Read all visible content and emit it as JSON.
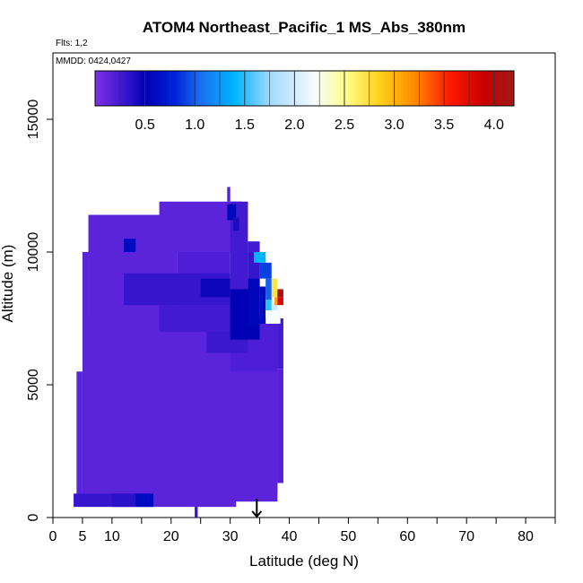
{
  "chart_data": {
    "type": "heatmap",
    "title": "ATOM4 Northeast_Pacific_1 MS_Abs_380nm",
    "flights_label": "Flts: 1,2",
    "dates_label": "MMDD: 0424,0427",
    "xlabel": "Latitude (deg N)",
    "ylabel": "Altitude (m)",
    "xlim": [
      0,
      85
    ],
    "ylim": [
      0,
      17500
    ],
    "x_ticks": [
      0,
      5,
      10,
      20,
      30,
      40,
      50,
      60,
      70,
      80
    ],
    "x_minor_ticks": [
      15,
      25,
      35,
      45,
      55,
      65,
      75,
      85
    ],
    "y_ticks": [
      0,
      5000,
      10000,
      15000
    ],
    "colorbar": {
      "range": [
        0,
        4.2
      ],
      "ticks": [
        0.5,
        1.0,
        1.5,
        2.0,
        2.5,
        3.0,
        3.5,
        4.0
      ],
      "tick_labels": [
        "0.5",
        "1.0",
        "1.5",
        "2.0",
        "2.5",
        "3.0",
        "3.5",
        "4.0"
      ],
      "stops": [
        {
          "v": 0.0,
          "c": "#7f2fe8"
        },
        {
          "v": 0.35,
          "c": "#2a12c8"
        },
        {
          "v": 0.5,
          "c": "#0000b4"
        },
        {
          "v": 0.8,
          "c": "#0022d8"
        },
        {
          "v": 1.05,
          "c": "#1a6ef0"
        },
        {
          "v": 1.4,
          "c": "#00b4ff"
        },
        {
          "v": 1.75,
          "c": "#9fd9ff"
        },
        {
          "v": 2.2,
          "c": "#f6fbff"
        },
        {
          "v": 2.5,
          "c": "#ffff90"
        },
        {
          "v": 2.85,
          "c": "#ffd21a"
        },
        {
          "v": 3.2,
          "c": "#ff8c00"
        },
        {
          "v": 3.55,
          "c": "#ff1a00"
        },
        {
          "v": 3.9,
          "c": "#c80000"
        },
        {
          "v": 4.2,
          "c": "#a01a1a"
        }
      ]
    },
    "cells": [
      {
        "lat0": 5.0,
        "lat1": 38.0,
        "alt0": 600,
        "alt1": 7500,
        "v": 0.15
      },
      {
        "lat0": 4.0,
        "lat1": 5.0,
        "alt0": 600,
        "alt1": 5500,
        "v": 0.15
      },
      {
        "lat0": 5.0,
        "lat1": 6.0,
        "alt0": 7500,
        "alt1": 10000,
        "v": 0.15
      },
      {
        "lat0": 6.0,
        "lat1": 21.0,
        "alt0": 7500,
        "alt1": 11400,
        "v": 0.15
      },
      {
        "lat0": 18.0,
        "lat1": 32.0,
        "alt0": 10000,
        "alt1": 11900,
        "v": 0.15
      },
      {
        "lat0": 21.0,
        "lat1": 30.0,
        "alt0": 7500,
        "alt1": 10000,
        "v": 0.2
      },
      {
        "lat0": 30.0,
        "lat1": 33.0,
        "alt0": 7500,
        "alt1": 11900,
        "v": 0.25
      },
      {
        "lat0": 29.5,
        "lat1": 30.0,
        "alt0": 11900,
        "alt1": 12450,
        "v": 0.2
      },
      {
        "lat0": 33.0,
        "lat1": 35.0,
        "alt0": 8000,
        "alt1": 10000,
        "v": 0.3
      },
      {
        "lat0": 30.0,
        "lat1": 38.0,
        "alt0": 5500,
        "alt1": 7500,
        "v": 0.2
      },
      {
        "lat0": 38.0,
        "lat1": 39.0,
        "alt0": 5600,
        "alt1": 7500,
        "v": 0.25
      },
      {
        "lat0": 38.0,
        "lat1": 39.0,
        "alt0": 1300,
        "alt1": 5600,
        "v": 0.18
      },
      {
        "lat0": 35.0,
        "lat1": 38.0,
        "alt0": 900,
        "alt1": 5500,
        "v": 0.15
      },
      {
        "lat0": 12.0,
        "lat1": 30.0,
        "alt0": 8000,
        "alt1": 9200,
        "v": 0.3
      },
      {
        "lat0": 18.0,
        "lat1": 33.0,
        "alt0": 7000,
        "alt1": 8000,
        "v": 0.25
      },
      {
        "lat0": 26.0,
        "lat1": 33.0,
        "alt0": 6200,
        "alt1": 7000,
        "v": 0.28
      },
      {
        "lat0": 25.0,
        "lat1": 30.0,
        "alt0": 8300,
        "alt1": 9000,
        "v": 0.45
      },
      {
        "lat0": 30.0,
        "lat1": 35.0,
        "alt0": 6700,
        "alt1": 8600,
        "v": 0.5
      },
      {
        "lat0": 33.0,
        "lat1": 35.0,
        "alt0": 7200,
        "alt1": 9000,
        "v": 0.55
      },
      {
        "lat0": 35.0,
        "lat1": 36.0,
        "alt0": 7300,
        "alt1": 8700,
        "v": 0.6
      },
      {
        "lat0": 35.0,
        "lat1": 37.0,
        "alt0": 9000,
        "alt1": 9600,
        "v": 0.9
      },
      {
        "lat0": 36.0,
        "lat1": 37.0,
        "alt0": 8200,
        "alt1": 9000,
        "v": 1.0
      },
      {
        "lat0": 36.0,
        "lat1": 37.0,
        "alt0": 7800,
        "alt1": 8200,
        "v": 1.5
      },
      {
        "lat0": 37.0,
        "lat1": 38.0,
        "alt0": 7800,
        "alt1": 8100,
        "v": 2.0
      },
      {
        "lat0": 36.0,
        "lat1": 38.5,
        "alt0": 7300,
        "alt1": 7800,
        "v": 2.2
      },
      {
        "lat0": 37.0,
        "lat1": 38.0,
        "alt0": 8300,
        "alt1": 9000,
        "v": 2.7
      },
      {
        "lat0": 37.5,
        "lat1": 38.0,
        "alt0": 8000,
        "alt1": 8300,
        "v": 3.1
      },
      {
        "lat0": 38.0,
        "lat1": 39.0,
        "alt0": 8000,
        "alt1": 8300,
        "v": 3.8
      },
      {
        "lat0": 38.0,
        "lat1": 39.0,
        "alt0": 8300,
        "alt1": 8600,
        "v": 4.1
      },
      {
        "lat0": 38.0,
        "lat1": 38.6,
        "alt0": 7600,
        "alt1": 8000,
        "v": 2.2
      },
      {
        "lat0": 34.0,
        "lat1": 36.0,
        "alt0": 9600,
        "alt1": 10000,
        "v": 1.4
      },
      {
        "lat0": 33.0,
        "lat1": 35.0,
        "alt0": 10000,
        "alt1": 10400,
        "v": 0.25
      },
      {
        "lat0": 29.5,
        "lat1": 31.0,
        "alt0": 11200,
        "alt1": 11800,
        "v": 0.55
      },
      {
        "lat0": 30.5,
        "lat1": 31.5,
        "alt0": 10800,
        "alt1": 11300,
        "v": 0.4
      },
      {
        "lat0": 12.0,
        "lat1": 14.0,
        "alt0": 10000,
        "alt1": 10500,
        "v": 0.6
      },
      {
        "lat0": 3.5,
        "lat1": 17.0,
        "alt0": 400,
        "alt1": 900,
        "v": 0.3
      },
      {
        "lat0": 10.0,
        "lat1": 14.0,
        "alt0": 400,
        "alt1": 900,
        "v": 0.35
      },
      {
        "lat0": 14.0,
        "lat1": 17.0,
        "alt0": 400,
        "alt1": 900,
        "v": 0.6
      },
      {
        "lat0": 17.0,
        "lat1": 31.0,
        "alt0": 400,
        "alt1": 900,
        "v": 0.15
      },
      {
        "lat0": 24.0,
        "lat1": 24.5,
        "alt0": 0,
        "alt1": 400,
        "v": 0.3
      }
    ],
    "annotations": [
      {
        "type": "arrow",
        "lat": 34.5,
        "alt_top": 700,
        "alt_bottom": 0
      }
    ]
  }
}
